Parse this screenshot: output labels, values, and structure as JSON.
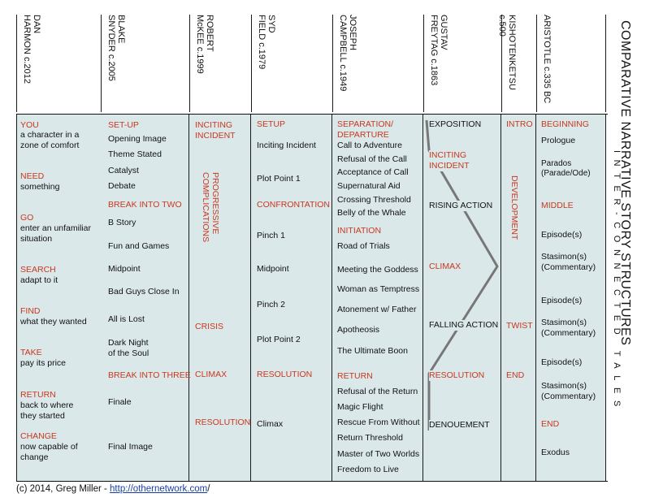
{
  "title": "COMPARATIVE NARRATIVE STORY STRUCTURES",
  "subtitle": "INTER-CONNECTED TALES",
  "footer": {
    "prefix": "(c) 2014, Greg Miller - ",
    "link": "http://othernetwork.com",
    "suffix": "/"
  },
  "colors": {
    "panel": "#dbe8ea",
    "accent": "#c8381d",
    "line": "#777777"
  },
  "columns": [
    {
      "header": [
        "DAN",
        "HARMON c.2012"
      ]
    },
    {
      "header": [
        "BLAKE",
        "SNYDER c.2005"
      ]
    },
    {
      "header": [
        "ROBERT",
        "McKEE c.1999"
      ]
    },
    {
      "header": [
        "SYD",
        "FIELD c.1979"
      ]
    },
    {
      "header": [
        "JOSEPH",
        "CAMPBELL c.1949"
      ]
    },
    {
      "header": [
        "GUSTAV",
        "FREYTAG c.1863"
      ]
    },
    {
      "header": [
        "KISHOTENKETSU c.500"
      ]
    },
    {
      "header": [
        "ARISTOTLE c.335 BC"
      ]
    }
  ],
  "harmon": [
    {
      "h": "YOU",
      "t": [
        "a character in a",
        "zone of comfort"
      ]
    },
    {
      "h": "NEED",
      "t": [
        "something"
      ]
    },
    {
      "h": "GO",
      "t": [
        "enter an unfamiliar",
        "situation"
      ]
    },
    {
      "h": "SEARCH",
      "t": [
        "adapt to it"
      ]
    },
    {
      "h": "FIND",
      "t": [
        "what they wanted"
      ]
    },
    {
      "h": "TAKE",
      "t": [
        "pay its price"
      ]
    },
    {
      "h": "RETURN",
      "t": [
        "back to where",
        "they started"
      ]
    },
    {
      "h": "CHANGE",
      "t": [
        "now capable of",
        "change"
      ]
    }
  ],
  "snyder": {
    "setup": "SET-UP",
    "a": [
      "Opening Image",
      "Theme Stated",
      "Catalyst",
      "Debate"
    ],
    "b2": "BREAK INTO TWO",
    "b": [
      "B Story",
      "Fun and Games",
      "Midpoint",
      "Bad Guys Close In",
      "All is Lost"
    ],
    "dn": [
      "Dark Night",
      "of the Soul"
    ],
    "b3": "BREAK INTO THREE",
    "c": [
      "Finale",
      "Final Image"
    ]
  },
  "mckee": {
    "inc": [
      "INCITING",
      "INCIDENT"
    ],
    "prog": [
      "PROGRESSIVE",
      "COMPLICATIONS"
    ],
    "crisis": "CRISIS",
    "climax": "CLIMAX",
    "res": "RESOLUTION"
  },
  "field": {
    "setup": "SETUP",
    "ii": "Inciting Incident",
    "pp1": "Plot Point 1",
    "conf": "CONFRONTATION",
    "p1": "Pinch 1",
    "mid": "Midpoint",
    "p2": "Pinch 2",
    "pp2": "Plot Point 2",
    "res": "RESOLUTION",
    "cl": "Climax"
  },
  "campbell": {
    "sep": [
      "SEPARATION/",
      "DEPARTURE"
    ],
    "a": [
      "Call to Adventure",
      "Refusal of the Call",
      "Acceptance of Call",
      "Supernatural Aid",
      "Crossing Threshold",
      "Belly of the Whale"
    ],
    "init": "INITIATION",
    "b": [
      "Road of Trials",
      "Meeting the Goddess",
      "Woman as Temptress",
      "Atonement w/ Father",
      "Apotheosis",
      "The Ultimate Boon"
    ],
    "ret": "RETURN",
    "c": [
      "Refusal of the Return",
      "Magic Flight",
      "Rescue From Without",
      "Return Threshold",
      "Master of Two Worlds",
      "Freedom to Live"
    ]
  },
  "freytag": {
    "expo": "EXPOSITION",
    "inc": [
      "INCITING",
      "INCIDENT"
    ],
    "rising": "RISING ACTION",
    "climax": "CLIMAX",
    "falling": "FALLING ACTION",
    "res": "RESOLUTION",
    "den": "DENOUEMENT"
  },
  "kisho": {
    "intro": "INTRO",
    "dev": "DEVELOPMENT",
    "twist": "TWIST",
    "end": "END"
  },
  "aristotle": {
    "beg": "BEGINNING",
    "pro": "Prologue",
    "parados": [
      "Parados",
      "(Parade/Ode)"
    ],
    "mid": "MIDDLE",
    "ep1": "Episode(s)",
    "st1": [
      "Stasimon(s)",
      "(Commentary)"
    ],
    "ep2": "Episode(s)",
    "st2": [
      "Stasimon(s)",
      "(Commentary)"
    ],
    "ep3": "Episode(s)",
    "st3": [
      "Stasimon(s)",
      "(Commentary)"
    ],
    "end": "END",
    "exo": "Exodus"
  }
}
